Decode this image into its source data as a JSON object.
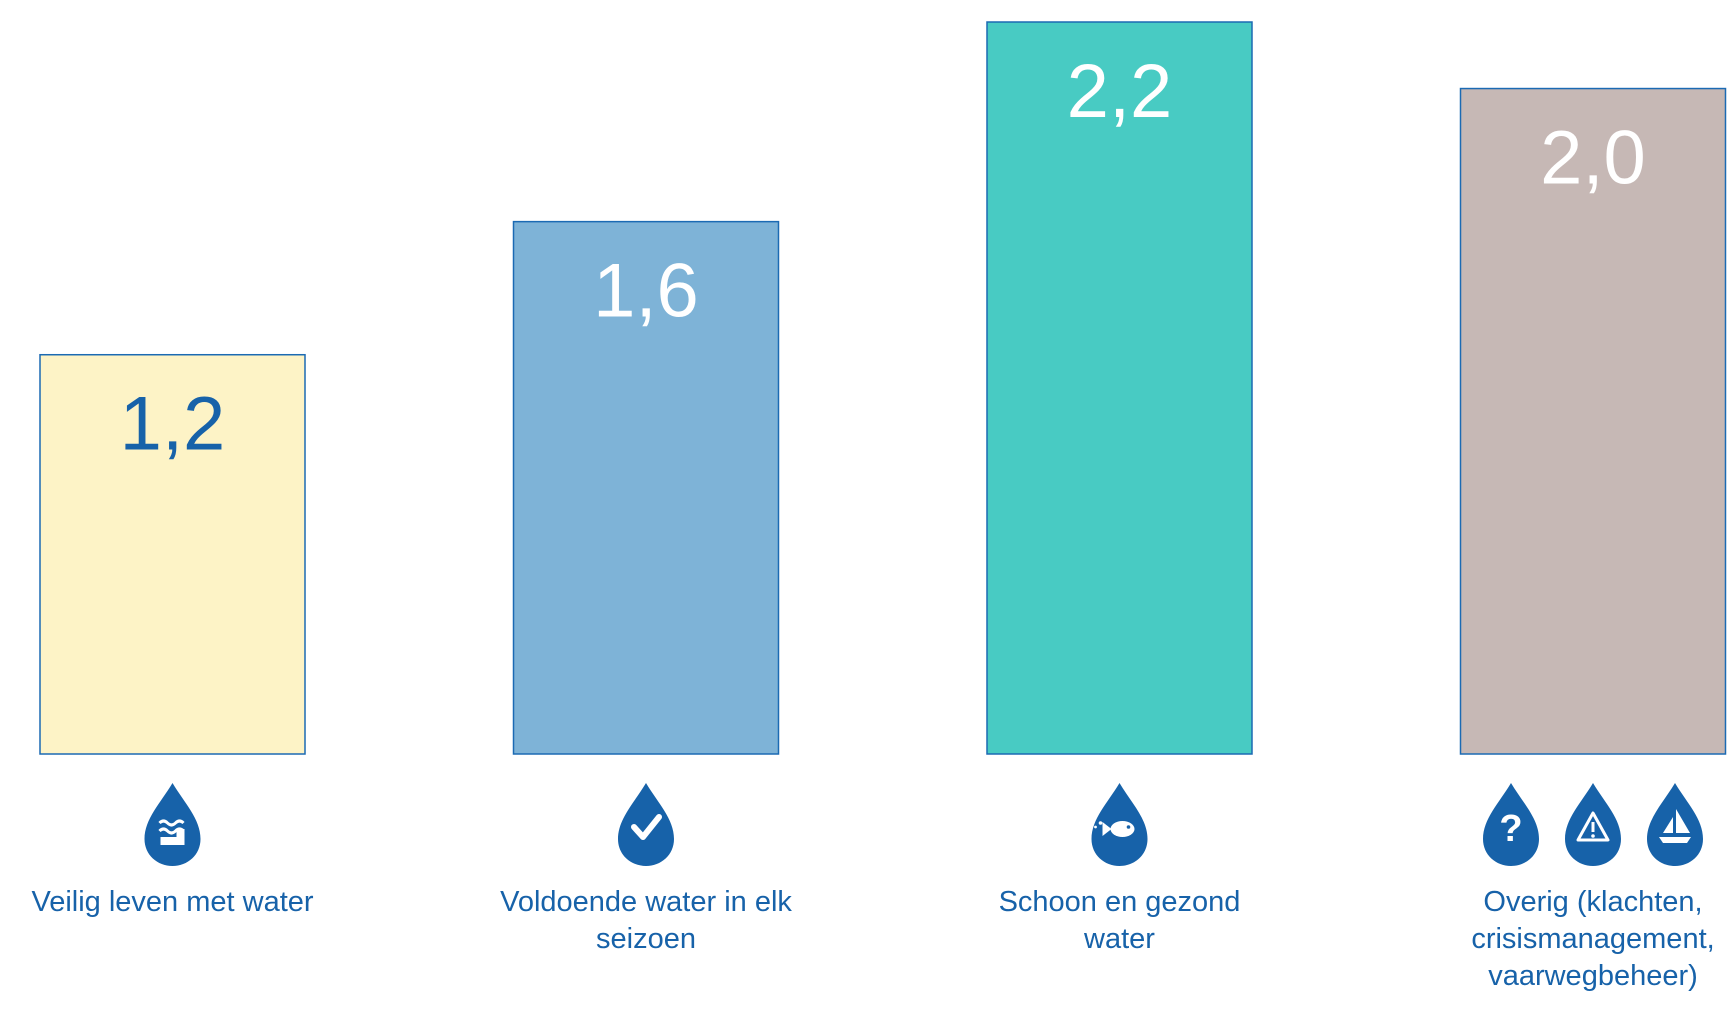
{
  "chart_data": {
    "type": "bar",
    "title": "",
    "xlabel": "",
    "ylabel": "",
    "ylim": [
      0,
      2.2
    ],
    "grid": false,
    "legend": "none",
    "categories": [
      "Veilig leven met water",
      "Voldoende water in elk seizoen",
      "Schoon en gezond water",
      "Overig (klachten, crisismanagement, vaarwegbeheer)"
    ],
    "values": [
      1.2,
      1.6,
      2.2,
      2.0
    ],
    "data_labels": [
      "1,2",
      "1,6",
      "2,2",
      "2,0"
    ],
    "bar_colors": [
      "#fdf3c6",
      "#7eb3d7",
      "#48cbc3",
      "#c6b8b5"
    ],
    "bar_border_colors": [
      "#1b6ab3",
      "#1b6ab3",
      "#1b6ab3",
      "#1b6ab3"
    ],
    "label_colors": [
      "#1762a9",
      "#ffffff",
      "#ffffff",
      "#ffffff"
    ],
    "icons": [
      [
        "water-drop-flood-icon"
      ],
      [
        "water-drop-check-icon"
      ],
      [
        "water-drop-fish-icon"
      ],
      [
        "water-drop-question-icon",
        "water-drop-warning-icon",
        "water-drop-sailboat-icon"
      ]
    ],
    "icon_color": "#1762a9"
  }
}
